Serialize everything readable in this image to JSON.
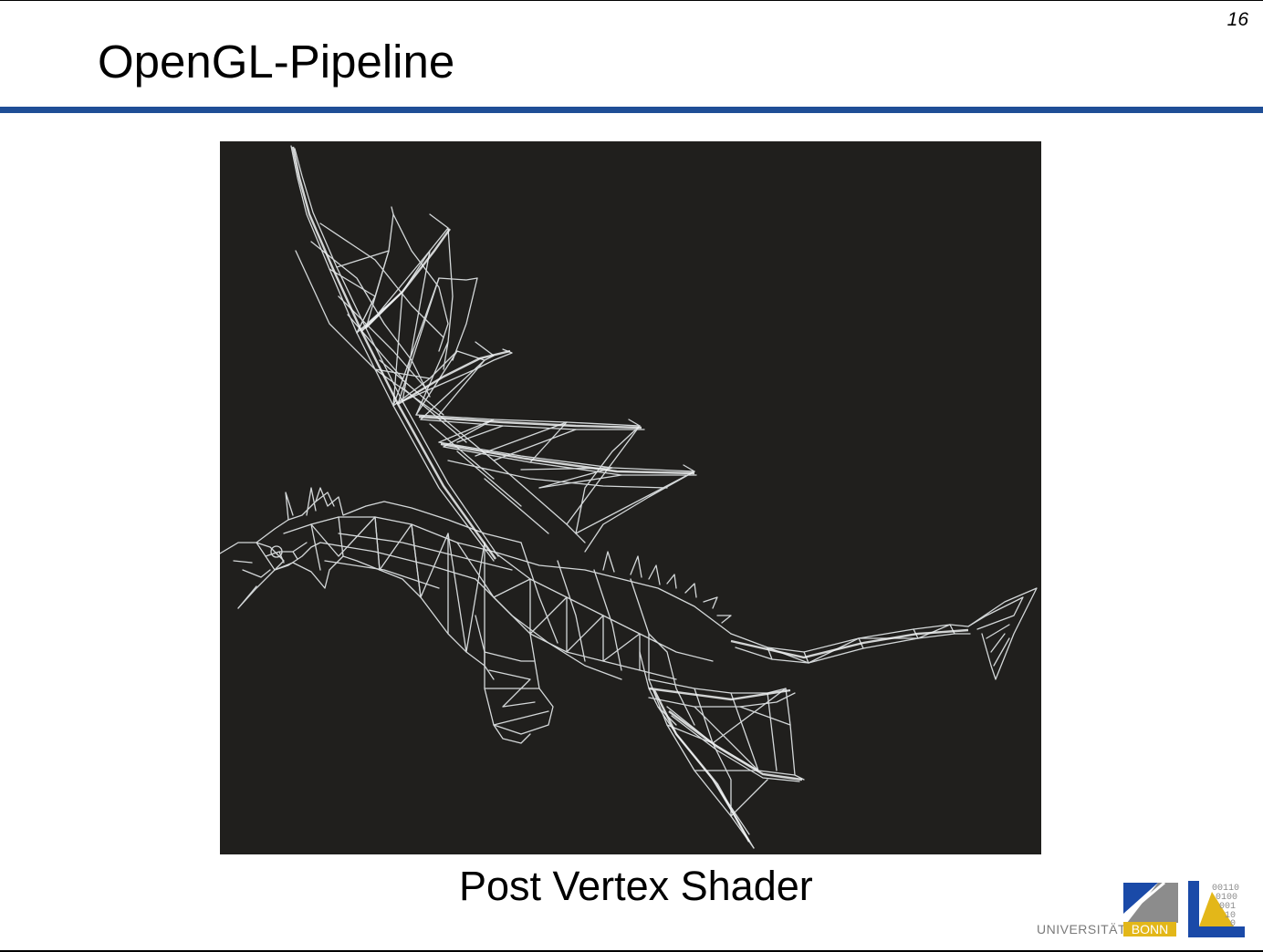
{
  "slide": {
    "page_number": "16",
    "title": "OpenGL-Pipeline",
    "caption": "Post Vertex Shader"
  },
  "figure": {
    "description_icon": "dragon-wireframe-icon",
    "background_color": "#201f1d",
    "wire_color": "#e4e8ea"
  },
  "logo": {
    "university_text": "UNIVERSITÄT",
    "city_text": "BONN",
    "binary_text": [
      "00110",
      "0100",
      "001",
      "10",
      "0"
    ],
    "colors": {
      "blue": "#1a4aa8",
      "gray": "#8c8c8c",
      "yellow": "#e3b719"
    }
  },
  "theme": {
    "header_rule_color": "#1f4e96"
  }
}
